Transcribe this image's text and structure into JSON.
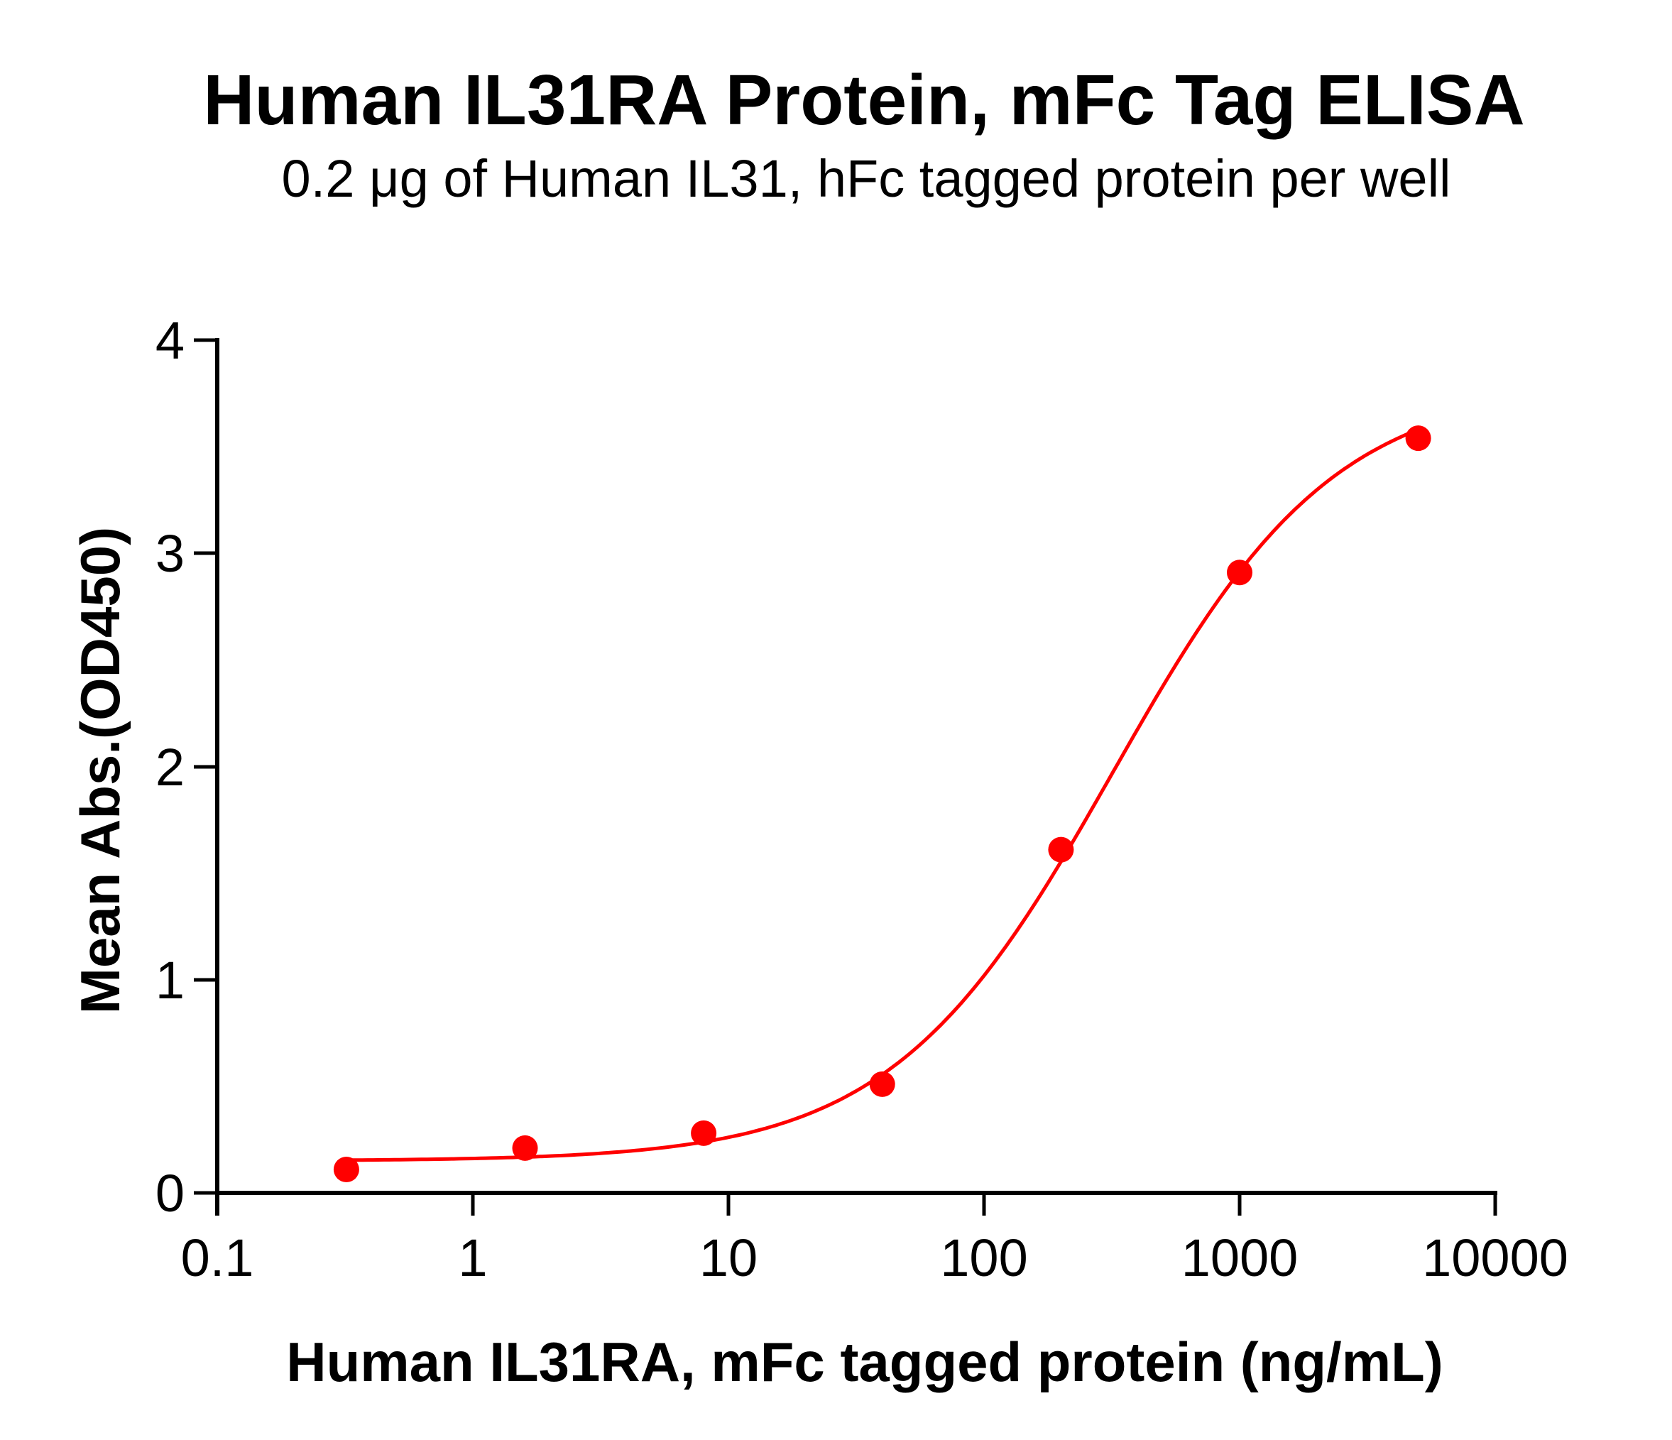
{
  "title": "Human IL31RA Protein, mFc Tag ELISA",
  "subtitle": "0.2 μg of Human IL31, hFc tagged protein per well",
  "x_axis": {
    "label": "Human IL31RA, mFc tagged protein (ng/mL)",
    "ticks": [
      "0.1",
      "1",
      "10",
      "100",
      "1000",
      "10000"
    ]
  },
  "y_axis": {
    "label": "Mean Abs.(OD450)",
    "ticks": [
      "0",
      "1",
      "2",
      "3",
      "4"
    ]
  },
  "colors": {
    "series": "#ff0000",
    "axis": "#000000",
    "background": "#ffffff"
  },
  "chart_data": {
    "type": "scatter",
    "title": "Human IL31RA Protein, mFc Tag ELISA",
    "subtitle": "0.2 μg of Human IL31, hFc tagged protein per well",
    "xlabel": "Human IL31RA, mFc tagged protein (ng/mL)",
    "ylabel": "Mean Abs.(OD450)",
    "xscale": "log",
    "xlim": [
      0.1,
      10000
    ],
    "ylim": [
      0,
      4
    ],
    "xticks": [
      0.1,
      1,
      10,
      100,
      1000,
      10000
    ],
    "yticks": [
      0,
      1,
      2,
      3,
      4
    ],
    "grid": false,
    "legend": null,
    "series": [
      {
        "name": "Human IL31RA, mFc",
        "color": "#ff0000",
        "x": [
          0.32,
          1.6,
          8,
          40,
          200,
          1000,
          5000
        ],
        "y": [
          0.11,
          0.21,
          0.28,
          0.51,
          1.61,
          2.91,
          3.54
        ],
        "fit": {
          "model": "4PL",
          "bottom": 0.15,
          "top": 3.8,
          "ec50": 320,
          "hill": 1.0
        }
      }
    ]
  }
}
